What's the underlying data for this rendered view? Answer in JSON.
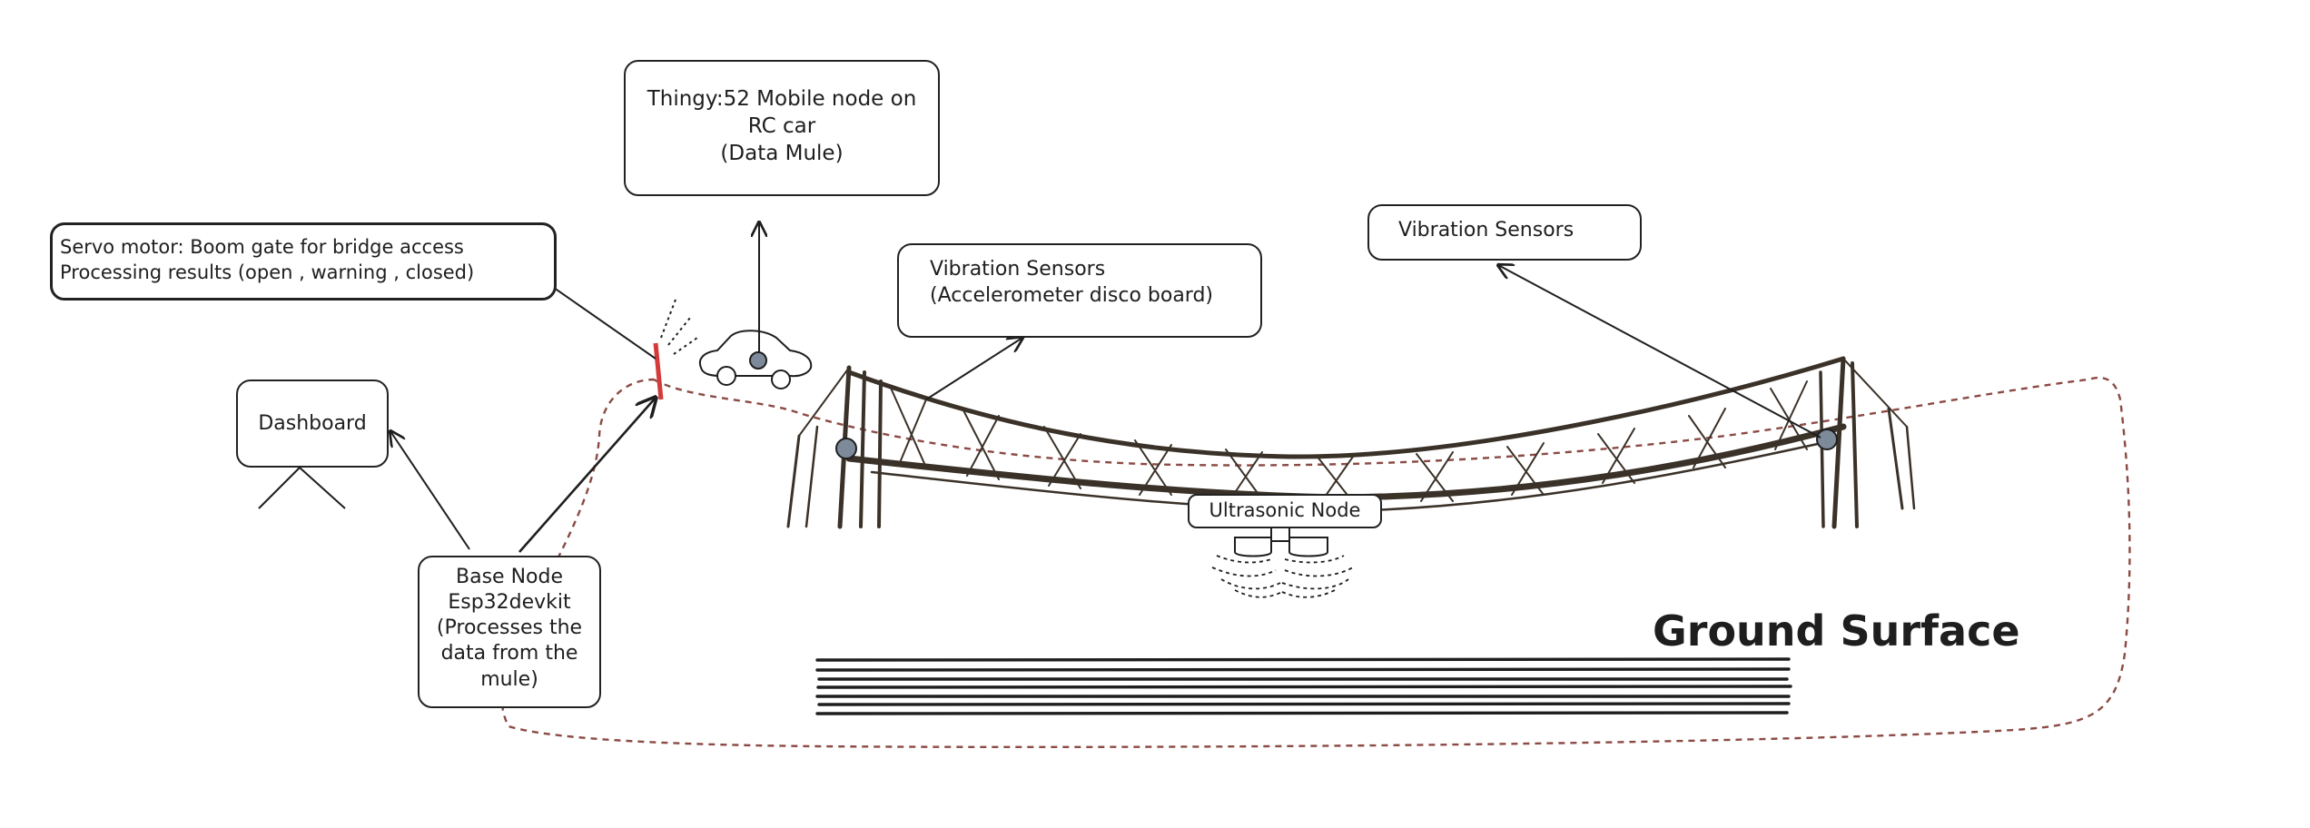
{
  "thingy_box": {
    "line1": "Thingy:52 Mobile node on",
    "line2": "RC car",
    "line3": "(Data Mule)"
  },
  "servo_box": {
    "line1": "Servo motor: Boom gate for bridge access",
    "line2": "Processing results (open , warning , closed)"
  },
  "dashboard_box": {
    "label": "Dashboard"
  },
  "base_node_box": {
    "line1": "Base Node",
    "line2": "Esp32devkit",
    "line3": "(Processes the",
    "line4": "data from the",
    "line5": "mule)"
  },
  "vibration_left_box": {
    "line1": "Vibration Sensors",
    "line2": "(Accelerometer disco board)"
  },
  "vibration_right_box": {
    "label": "Vibration Sensors"
  },
  "ultrasonic_box": {
    "label": "Ultrasonic Node"
  },
  "ground_label": "Ground Surface",
  "colors": {
    "stroke": "#1e1e1e",
    "route": "#8b4a44",
    "gate": "#d43a3a",
    "sensor": "#7d8a99",
    "bridge": "#3a3128"
  }
}
